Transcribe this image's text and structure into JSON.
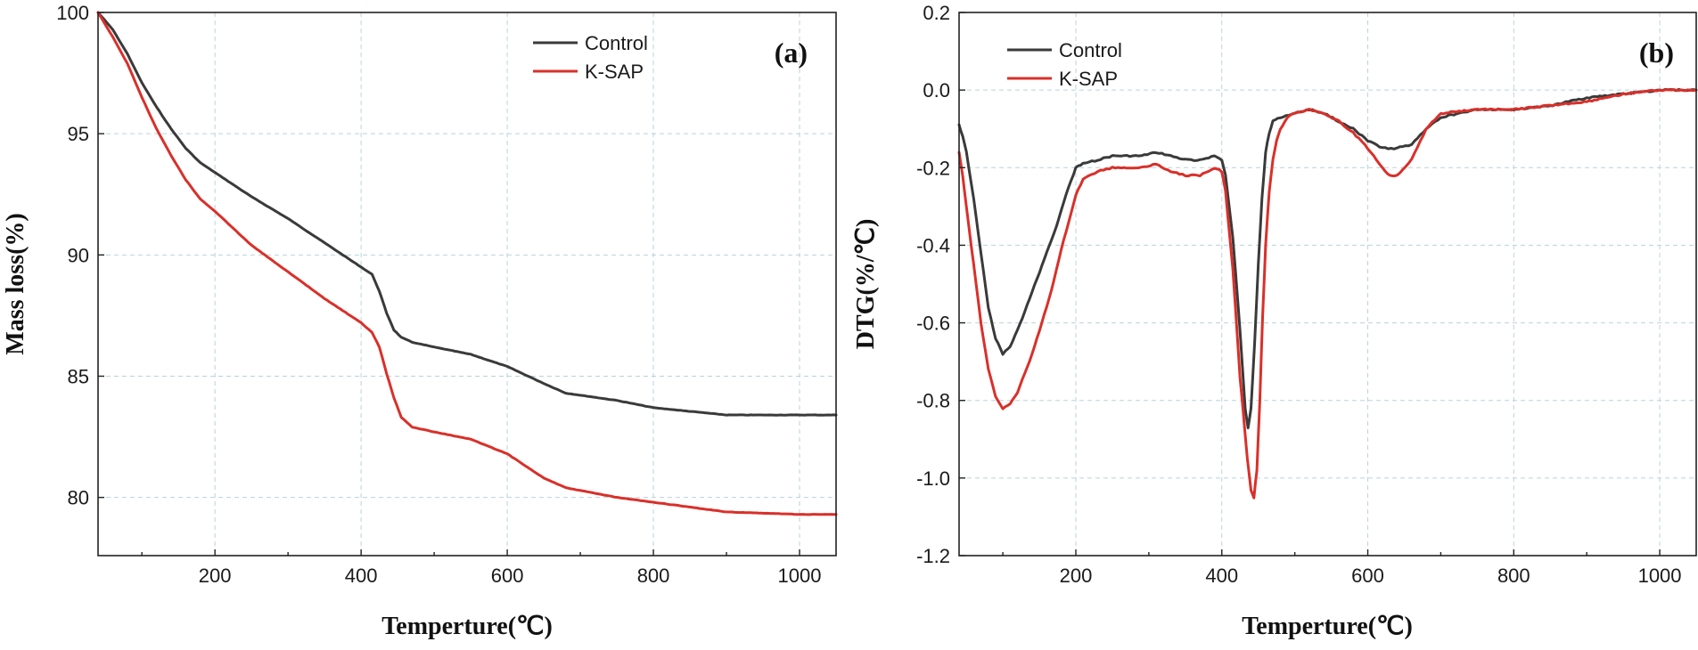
{
  "chart_data": [
    {
      "type": "line",
      "panel_label": "(a)",
      "xlabel": "Temperture(℃)",
      "ylabel": "Mass loss(%)",
      "xlim": [
        40,
        1050
      ],
      "ylim": [
        77.6,
        100
      ],
      "xticks": [
        200,
        400,
        600,
        800,
        1000
      ],
      "yticks": [
        80,
        85,
        90,
        95,
        100
      ],
      "grid": true,
      "legend_position": "top-right",
      "series": [
        {
          "name": "Control",
          "color": "#3a3a3a",
          "x": [
            40,
            60,
            80,
            100,
            120,
            140,
            160,
            180,
            200,
            250,
            300,
            350,
            400,
            415,
            425,
            435,
            445,
            455,
            470,
            500,
            550,
            600,
            650,
            680,
            750,
            800,
            900,
            1000,
            1050
          ],
          "y": [
            100,
            99.3,
            98.3,
            97.1,
            96.1,
            95.2,
            94.4,
            93.8,
            93.4,
            92.4,
            91.5,
            90.5,
            89.5,
            89.2,
            88.5,
            87.6,
            86.9,
            86.6,
            86.4,
            86.2,
            85.9,
            85.4,
            84.7,
            84.3,
            84.0,
            83.7,
            83.4,
            83.4,
            83.4
          ]
        },
        {
          "name": "K-SAP",
          "color": "#d9302a",
          "x": [
            40,
            60,
            80,
            100,
            120,
            140,
            160,
            180,
            200,
            250,
            300,
            350,
            400,
            415,
            425,
            435,
            445,
            455,
            470,
            500,
            550,
            600,
            650,
            680,
            750,
            800,
            900,
            1000,
            1050
          ],
          "y": [
            100,
            99.0,
            97.9,
            96.5,
            95.2,
            94.1,
            93.1,
            92.3,
            91.8,
            90.4,
            89.3,
            88.2,
            87.2,
            86.8,
            86.2,
            85.1,
            84.1,
            83.3,
            82.9,
            82.7,
            82.4,
            81.8,
            80.8,
            80.4,
            80.0,
            79.8,
            79.4,
            79.3,
            79.3
          ]
        }
      ]
    },
    {
      "type": "line",
      "panel_label": "(b)",
      "xlabel": "Temperture(℃)",
      "ylabel": "DTG(%/℃)",
      "xlim": [
        40,
        1050
      ],
      "ylim": [
        -1.2,
        0.2
      ],
      "xticks": [
        200,
        400,
        600,
        800,
        1000
      ],
      "yticks": [
        -1.2,
        -1.0,
        -0.8,
        -0.6,
        -0.4,
        -0.2,
        0.0,
        0.2
      ],
      "ytick_labels": [
        "-1.2",
        "-1.0",
        "-0.8",
        "-0.6",
        "-0.4",
        "-0.2",
        "0.0",
        "0.2"
      ],
      "grid": true,
      "legend_position": "top-left",
      "series": [
        {
          "name": "Control",
          "color": "#3a3a3a",
          "x": [
            40,
            45,
            50,
            60,
            70,
            80,
            90,
            100,
            110,
            120,
            130,
            140,
            150,
            160,
            170,
            180,
            190,
            200,
            210,
            230,
            250,
            270,
            290,
            310,
            330,
            350,
            370,
            390,
            400,
            405,
            415,
            425,
            432,
            436,
            440,
            445,
            450,
            455,
            460,
            465,
            470,
            480,
            500,
            520,
            540,
            560,
            580,
            600,
            620,
            640,
            660,
            680,
            700,
            750,
            800,
            850,
            900,
            950,
            1000,
            1030,
            1050
          ],
          "y": [
            -0.09,
            -0.12,
            -0.16,
            -0.28,
            -0.42,
            -0.56,
            -0.64,
            -0.68,
            -0.66,
            -0.62,
            -0.57,
            -0.52,
            -0.47,
            -0.42,
            -0.37,
            -0.31,
            -0.25,
            -0.2,
            -0.19,
            -0.18,
            -0.17,
            -0.17,
            -0.17,
            -0.16,
            -0.17,
            -0.18,
            -0.18,
            -0.17,
            -0.18,
            -0.22,
            -0.38,
            -0.62,
            -0.82,
            -0.87,
            -0.82,
            -0.65,
            -0.45,
            -0.28,
            -0.16,
            -0.11,
            -0.08,
            -0.07,
            -0.06,
            -0.05,
            -0.06,
            -0.08,
            -0.1,
            -0.13,
            -0.15,
            -0.15,
            -0.14,
            -0.1,
            -0.07,
            -0.05,
            -0.05,
            -0.04,
            -0.02,
            -0.01,
            0.0,
            0.0,
            0.0
          ]
        },
        {
          "name": "K-SAP",
          "color": "#d9302a",
          "x": [
            40,
            45,
            50,
            60,
            70,
            80,
            90,
            100,
            110,
            120,
            130,
            140,
            150,
            160,
            170,
            180,
            190,
            200,
            210,
            230,
            250,
            270,
            290,
            310,
            330,
            350,
            370,
            390,
            400,
            405,
            415,
            425,
            435,
            440,
            444,
            448,
            452,
            456,
            460,
            465,
            470,
            475,
            480,
            490,
            500,
            520,
            540,
            560,
            580,
            600,
            620,
            630,
            640,
            660,
            680,
            700,
            750,
            800,
            850,
            900,
            950,
            1000,
            1030,
            1050
          ],
          "y": [
            -0.16,
            -0.22,
            -0.3,
            -0.45,
            -0.6,
            -0.72,
            -0.79,
            -0.82,
            -0.81,
            -0.78,
            -0.73,
            -0.68,
            -0.62,
            -0.56,
            -0.49,
            -0.41,
            -0.34,
            -0.27,
            -0.23,
            -0.21,
            -0.2,
            -0.2,
            -0.2,
            -0.19,
            -0.21,
            -0.22,
            -0.22,
            -0.2,
            -0.21,
            -0.26,
            -0.46,
            -0.74,
            -0.95,
            -1.03,
            -1.05,
            -0.98,
            -0.8,
            -0.58,
            -0.4,
            -0.26,
            -0.18,
            -0.13,
            -0.1,
            -0.07,
            -0.06,
            -0.05,
            -0.06,
            -0.08,
            -0.11,
            -0.15,
            -0.2,
            -0.22,
            -0.22,
            -0.18,
            -0.1,
            -0.06,
            -0.05,
            -0.05,
            -0.04,
            -0.03,
            -0.01,
            0.0,
            0.0,
            0.0
          ]
        }
      ]
    }
  ]
}
